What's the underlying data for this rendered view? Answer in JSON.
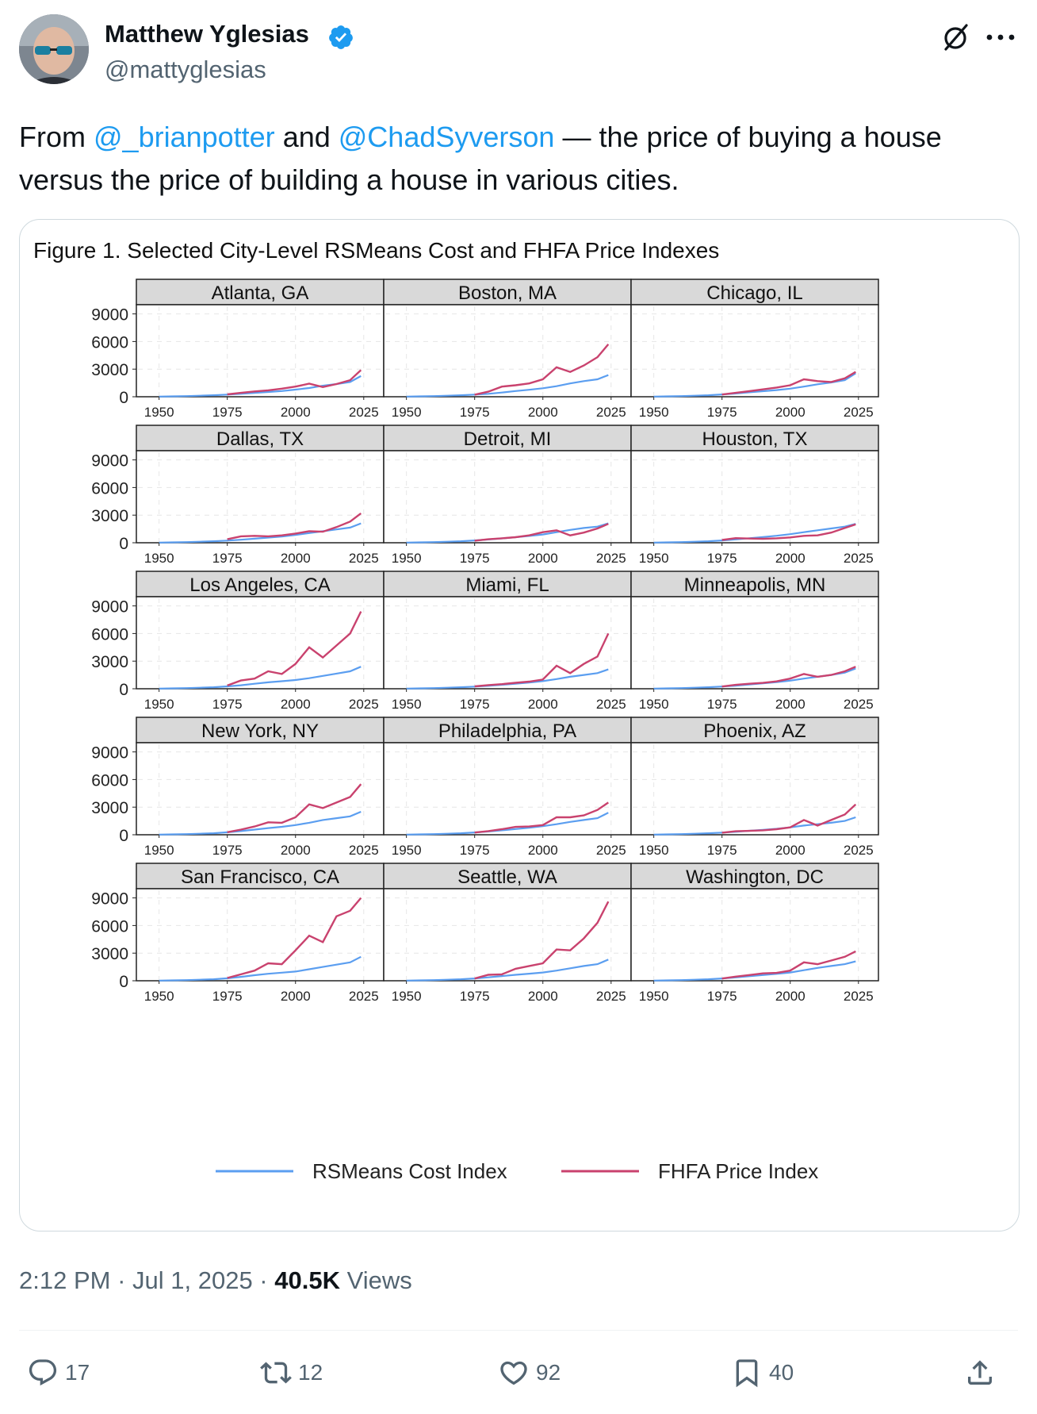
{
  "author": {
    "name": "Matthew Yglesias",
    "handle": "@mattyglesias"
  },
  "tweet": {
    "prefix": "From ",
    "mention1": "@_brianpotter",
    "mid": " and ",
    "mention2": "@ChadSyverson",
    "suffix": " — the price of buying a house versus the price of building a house in various cities."
  },
  "meta": {
    "time": "2:12 PM",
    "sep1": " · ",
    "date": "Jul 1, 2025",
    "sep2": " · ",
    "views": "40.5K",
    "views_label": " Views"
  },
  "actions": {
    "replies": "17",
    "reposts": "12",
    "likes": "92",
    "bookmarks": "40"
  },
  "colors": {
    "accent": "#1d9bf0",
    "rsmeans": "#5b9ef0",
    "fhfa": "#c9426e"
  },
  "icons": [
    "verified-badge-icon",
    "grok-icon",
    "more-icon",
    "reply-icon",
    "repost-icon",
    "like-icon",
    "bookmark-icon",
    "share-icon"
  ],
  "chart_data": {
    "type": "line",
    "title": "Figure 1. Selected City-Level RSMeans Cost and FHFA Price Indexes",
    "x_ticks": [
      1950,
      1975,
      2000,
      2025
    ],
    "y_ticks": [
      0,
      3000,
      6000,
      9000
    ],
    "xlim": [
      1944,
      2030
    ],
    "ylim": [
      0,
      10000
    ],
    "x": [
      1950,
      1955,
      1960,
      1965,
      1970,
      1975,
      1980,
      1985,
      1990,
      1995,
      2000,
      2005,
      2010,
      2015,
      2020,
      2024
    ],
    "legend": [
      "RSMeans Cost Index",
      "FHFA Price Index"
    ],
    "panels": [
      {
        "name": "Atlanta, GA",
        "cost": [
          20,
          40,
          70,
          110,
          160,
          230,
          320,
          420,
          520,
          620,
          780,
          950,
          1200,
          1380,
          1600,
          2250
        ],
        "price": [
          null,
          null,
          null,
          null,
          null,
          260,
          420,
          580,
          700,
          880,
          1100,
          1420,
          1050,
          1380,
          1800,
          2900
        ]
      },
      {
        "name": "Boston, MA",
        "cost": [
          20,
          40,
          70,
          110,
          160,
          230,
          320,
          460,
          620,
          760,
          920,
          1150,
          1450,
          1700,
          1900,
          2350
        ],
        "price": [
          null,
          null,
          null,
          null,
          null,
          220,
          550,
          1100,
          1250,
          1450,
          1900,
          3200,
          2700,
          3400,
          4300,
          5700
        ]
      },
      {
        "name": "Chicago, IL",
        "cost": [
          20,
          40,
          70,
          110,
          160,
          250,
          350,
          480,
          600,
          720,
          880,
          1100,
          1350,
          1550,
          1800,
          2550
        ],
        "price": [
          null,
          null,
          null,
          null,
          null,
          240,
          420,
          600,
          800,
          1000,
          1250,
          1900,
          1700,
          1600,
          2000,
          2700
        ]
      },
      {
        "name": "Dallas, TX",
        "cost": [
          20,
          40,
          70,
          110,
          160,
          230,
          330,
          440,
          560,
          680,
          850,
          1050,
          1250,
          1450,
          1650,
          2100
        ],
        "price": [
          null,
          null,
          null,
          null,
          null,
          380,
          700,
          750,
          700,
          800,
          1000,
          1250,
          1200,
          1700,
          2300,
          3200
        ]
      },
      {
        "name": "Detroit, MI",
        "cost": [
          20,
          40,
          70,
          110,
          160,
          250,
          350,
          470,
          600,
          740,
          900,
          1150,
          1400,
          1600,
          1750,
          2100
        ],
        "price": [
          null,
          null,
          null,
          null,
          null,
          220,
          380,
          480,
          600,
          800,
          1150,
          1350,
          800,
          1100,
          1550,
          2050
        ]
      },
      {
        "name": "Houston, TX",
        "cost": [
          20,
          40,
          70,
          110,
          160,
          250,
          360,
          490,
          620,
          760,
          930,
          1150,
          1350,
          1550,
          1750,
          2050
        ],
        "price": [
          null,
          null,
          null,
          null,
          null,
          300,
          500,
          460,
          430,
          480,
          580,
          750,
          800,
          1100,
          1600,
          2000
        ]
      },
      {
        "name": "Los Angeles, CA",
        "cost": [
          20,
          40,
          70,
          110,
          160,
          260,
          380,
          540,
          700,
          820,
          950,
          1150,
          1400,
          1650,
          1900,
          2400
        ],
        "price": [
          null,
          null,
          null,
          null,
          null,
          350,
          900,
          1100,
          1900,
          1600,
          2700,
          4500,
          3400,
          4700,
          6000,
          8400
        ]
      },
      {
        "name": "Miami, FL",
        "cost": [
          20,
          40,
          70,
          110,
          160,
          230,
          320,
          430,
          550,
          680,
          830,
          1050,
          1300,
          1500,
          1700,
          2100
        ],
        "price": [
          null,
          null,
          null,
          null,
          null,
          260,
          400,
          500,
          650,
          780,
          1000,
          2500,
          1700,
          2700,
          3500,
          6000
        ]
      },
      {
        "name": "Minneapolis, MN",
        "cost": [
          20,
          40,
          70,
          110,
          160,
          240,
          340,
          460,
          590,
          720,
          880,
          1100,
          1300,
          1500,
          1750,
          2200
        ],
        "price": [
          null,
          null,
          null,
          null,
          null,
          240,
          420,
          540,
          640,
          800,
          1100,
          1600,
          1300,
          1500,
          1900,
          2400
        ]
      },
      {
        "name": "New York, NY",
        "cost": [
          20,
          40,
          70,
          110,
          160,
          270,
          400,
          560,
          720,
          860,
          1050,
          1300,
          1600,
          1800,
          2000,
          2500
        ],
        "price": [
          null,
          null,
          null,
          null,
          null,
          280,
          560,
          900,
          1350,
          1300,
          1900,
          3300,
          2900,
          3500,
          4100,
          5500
        ]
      },
      {
        "name": "Philadelphia, PA",
        "cost": [
          20,
          40,
          70,
          110,
          160,
          250,
          350,
          480,
          620,
          760,
          930,
          1150,
          1400,
          1600,
          1800,
          2400
        ],
        "price": [
          null,
          null,
          null,
          null,
          null,
          240,
          400,
          600,
          850,
          900,
          1050,
          1900,
          1900,
          2100,
          2700,
          3500
        ]
      },
      {
        "name": "Phoenix, AZ",
        "cost": [
          20,
          40,
          70,
          110,
          160,
          230,
          320,
          430,
          530,
          650,
          800,
          1000,
          1150,
          1300,
          1500,
          1900
        ],
        "price": [
          null,
          null,
          null,
          null,
          null,
          220,
          380,
          420,
          480,
          600,
          800,
          1600,
          1000,
          1600,
          2200,
          3300
        ]
      },
      {
        "name": "San Francisco, CA",
        "cost": [
          20,
          40,
          70,
          110,
          160,
          270,
          420,
          600,
          760,
          880,
          1000,
          1250,
          1500,
          1750,
          2000,
          2600
        ],
        "price": [
          null,
          null,
          null,
          null,
          null,
          300,
          700,
          1100,
          1900,
          1800,
          3300,
          4900,
          4200,
          7000,
          7600,
          9000
        ]
      },
      {
        "name": "Seattle, WA",
        "cost": [
          20,
          40,
          70,
          110,
          160,
          250,
          370,
          510,
          650,
          770,
          900,
          1100,
          1350,
          1600,
          1800,
          2300
        ],
        "price": [
          null,
          null,
          null,
          null,
          null,
          240,
          650,
          700,
          1300,
          1600,
          1900,
          3400,
          3300,
          4600,
          6300,
          8600
        ]
      },
      {
        "name": "Washington, DC",
        "cost": [
          20,
          40,
          70,
          110,
          160,
          250,
          360,
          490,
          620,
          750,
          900,
          1150,
          1400,
          1600,
          1800,
          2100
        ],
        "price": [
          null,
          null,
          null,
          null,
          null,
          240,
          450,
          620,
          800,
          850,
          1100,
          2000,
          1800,
          2200,
          2600,
          3200
        ]
      }
    ]
  }
}
